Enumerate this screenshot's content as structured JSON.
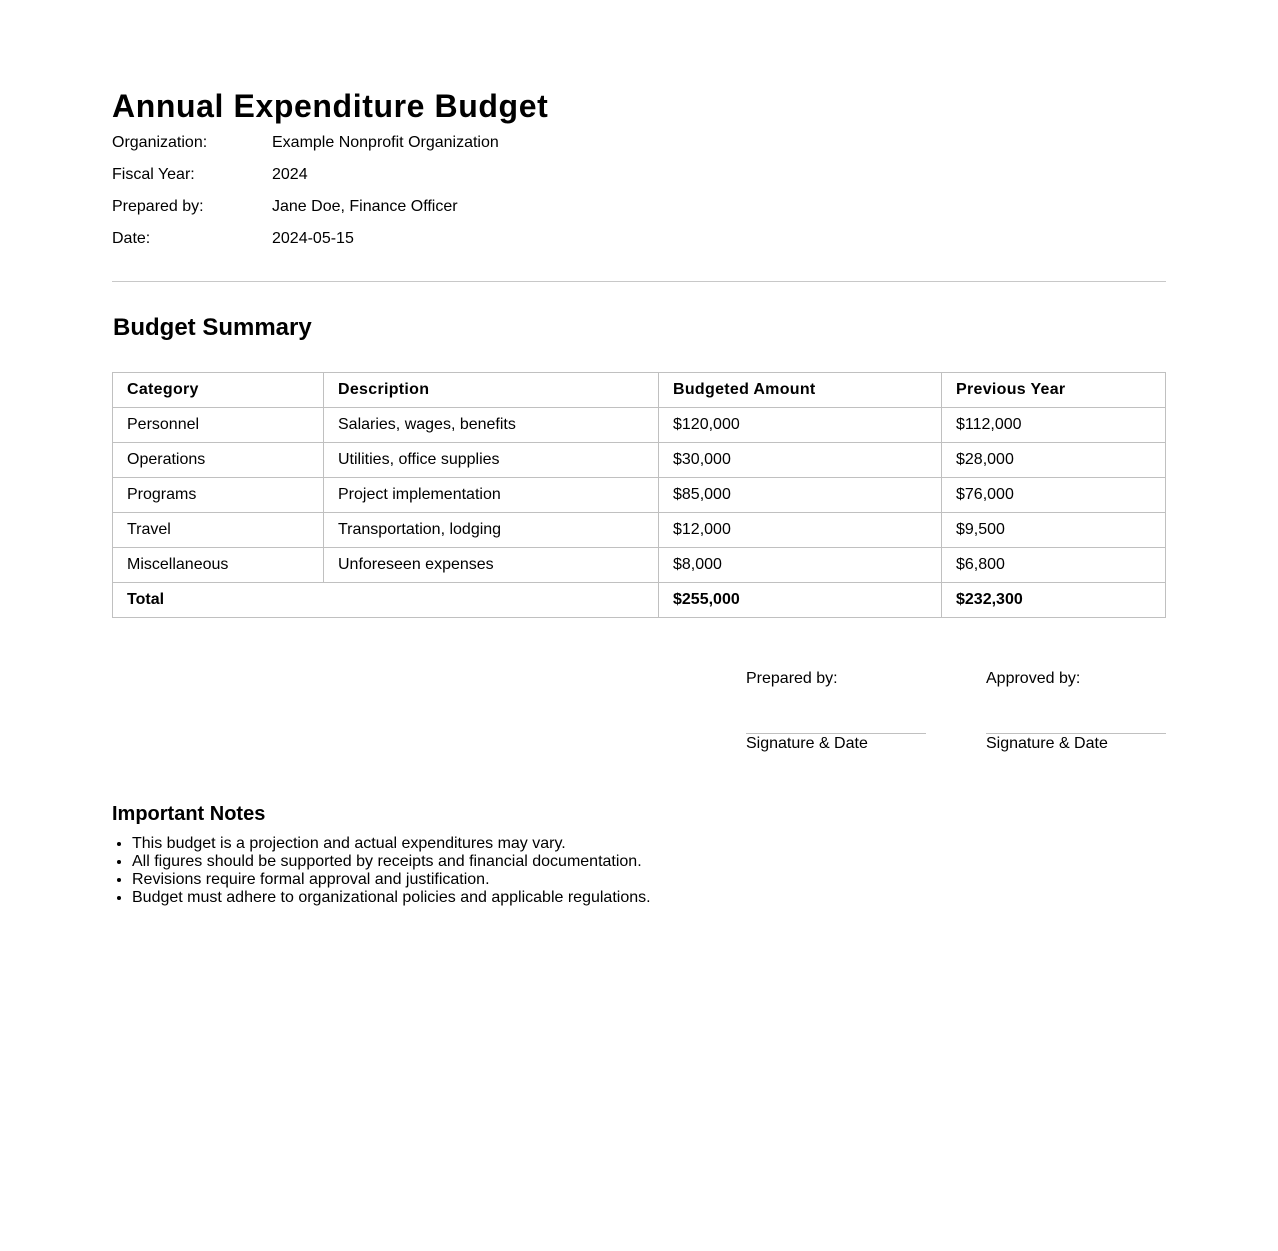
{
  "title": "Annual Expenditure Budget",
  "meta": [
    {
      "label": "Organization:",
      "value": "Example Nonprofit Organization"
    },
    {
      "label": "Fiscal Year:",
      "value": "2024"
    },
    {
      "label": "Prepared by:",
      "value": "Jane Doe, Finance Officer"
    },
    {
      "label": "Date:",
      "value": "2024-05-15"
    }
  ],
  "summary": {
    "heading": "Budget Summary",
    "columns": [
      "Category",
      "Description",
      "Budgeted Amount",
      "Previous Year"
    ],
    "rows": [
      [
        "Personnel",
        "Salaries, wages, benefits",
        "$120,000",
        "$112,000"
      ],
      [
        "Operations",
        "Utilities, office supplies",
        "$30,000",
        "$28,000"
      ],
      [
        "Programs",
        "Project implementation",
        "$85,000",
        "$76,000"
      ],
      [
        "Travel",
        "Transportation, lodging",
        "$12,000",
        "$9,500"
      ],
      [
        "Miscellaneous",
        "Unforeseen expenses",
        "$8,000",
        "$6,800"
      ]
    ],
    "total": {
      "label": "Total",
      "budgeted": "$255,000",
      "previous": "$232,300"
    }
  },
  "signatures": [
    {
      "label": "Prepared by:",
      "line_label": "Signature & Date"
    },
    {
      "label": "Approved by:",
      "line_label": "Signature & Date"
    }
  ],
  "notes": {
    "heading": "Important Notes",
    "items": [
      "This budget is a projection and actual expenditures may vary.",
      "All figures should be supported by receipts and financial documentation.",
      "Revisions require formal approval and justification.",
      "Budget must adhere to organizational policies and applicable regulations."
    ]
  }
}
